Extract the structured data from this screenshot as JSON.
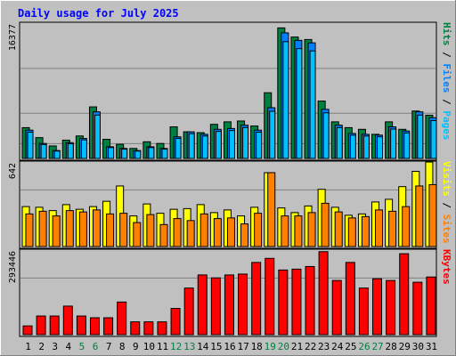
{
  "title": "Daily usage for July 2025",
  "colors": {
    "hits": "#008040",
    "files": "#0080ff",
    "pages": "#00c0ff",
    "visits": "#ffff00",
    "sites": "#ff8000",
    "kbytes": "#ff0000",
    "title": "#0000ff",
    "weekend_label": "#008040",
    "weekday_label": "#000000"
  },
  "chart_data": [
    {
      "type": "bar",
      "title": "Daily usage for July 2025",
      "categories": [
        "1",
        "2",
        "3",
        "4",
        "5",
        "6",
        "7",
        "8",
        "9",
        "10",
        "11",
        "12",
        "13",
        "14",
        "15",
        "16",
        "17",
        "18",
        "19",
        "20",
        "21",
        "22",
        "23",
        "24",
        "25",
        "26",
        "27",
        "28",
        "29",
        "30",
        "31"
      ],
      "weekend_days": [
        "5",
        "6",
        "12",
        "13",
        "19",
        "20",
        "26",
        "27"
      ],
      "ymax_label": "16377",
      "ylim": [
        0,
        16377
      ],
      "grid": true,
      "right_label": [
        "Pages",
        "Files",
        "Hits"
      ],
      "series": [
        {
          "name": "Hits",
          "color": "#008040",
          "values": [
            3700,
            2500,
            1500,
            2200,
            2700,
            6200,
            2300,
            1700,
            1200,
            2000,
            1800,
            3800,
            3200,
            3100,
            4100,
            4400,
            4500,
            3900,
            7900,
            15700,
            14600,
            14300,
            6900,
            4400,
            3700,
            3500,
            2900,
            4400,
            3500,
            5700,
            5200
          ]
        },
        {
          "name": "Files",
          "color": "#0080ff",
          "values": [
            3400,
            1800,
            950,
            1900,
            2400,
            5600,
            1400,
            1200,
            950,
            1400,
            1200,
            2600,
            3200,
            2900,
            3500,
            3600,
            4000,
            3400,
            6100,
            15100,
            14200,
            13900,
            5900,
            4000,
            3000,
            2900,
            2800,
            3800,
            3300,
            5600,
            4900
          ]
        }
      ]
    },
    {
      "type": "bar",
      "ymax_label": "642",
      "ylim": [
        0,
        642
      ],
      "grid": true,
      "right_label": [
        "Sites",
        "Visits"
      ],
      "series": [
        {
          "name": "Visits",
          "color": "#ffff00",
          "values": [
            300,
            295,
            270,
            315,
            280,
            300,
            340,
            455,
            230,
            320,
            250,
            280,
            285,
            315,
            255,
            275,
            230,
            295,
            555,
            290,
            255,
            305,
            430,
            295,
            235,
            245,
            335,
            355,
            450,
            565,
            635
          ]
        },
        {
          "name": "Sites",
          "color": "#ff8000",
          "values": [
            245,
            265,
            230,
            270,
            260,
            275,
            245,
            250,
            180,
            240,
            165,
            210,
            195,
            245,
            210,
            215,
            170,
            250,
            555,
            230,
            230,
            255,
            325,
            260,
            215,
            225,
            275,
            265,
            300,
            455,
            465
          ]
        }
      ]
    },
    {
      "type": "bar",
      "ymax_label": "293446",
      "ylim": [
        0,
        293446
      ],
      "grid": true,
      "right_label": [
        "KBytes"
      ],
      "series": [
        {
          "name": "KBytes",
          "color": "#ff0000",
          "values": [
            30000,
            64000,
            64000,
            98000,
            64000,
            58000,
            58000,
            112000,
            44000,
            44000,
            44000,
            90000,
            160000,
            205000,
            195000,
            205000,
            208000,
            248000,
            262000,
            222000,
            225000,
            234000,
            285000,
            186000,
            248000,
            160000,
            192000,
            186000,
            278000,
            180000,
            198000
          ]
        }
      ]
    }
  ]
}
